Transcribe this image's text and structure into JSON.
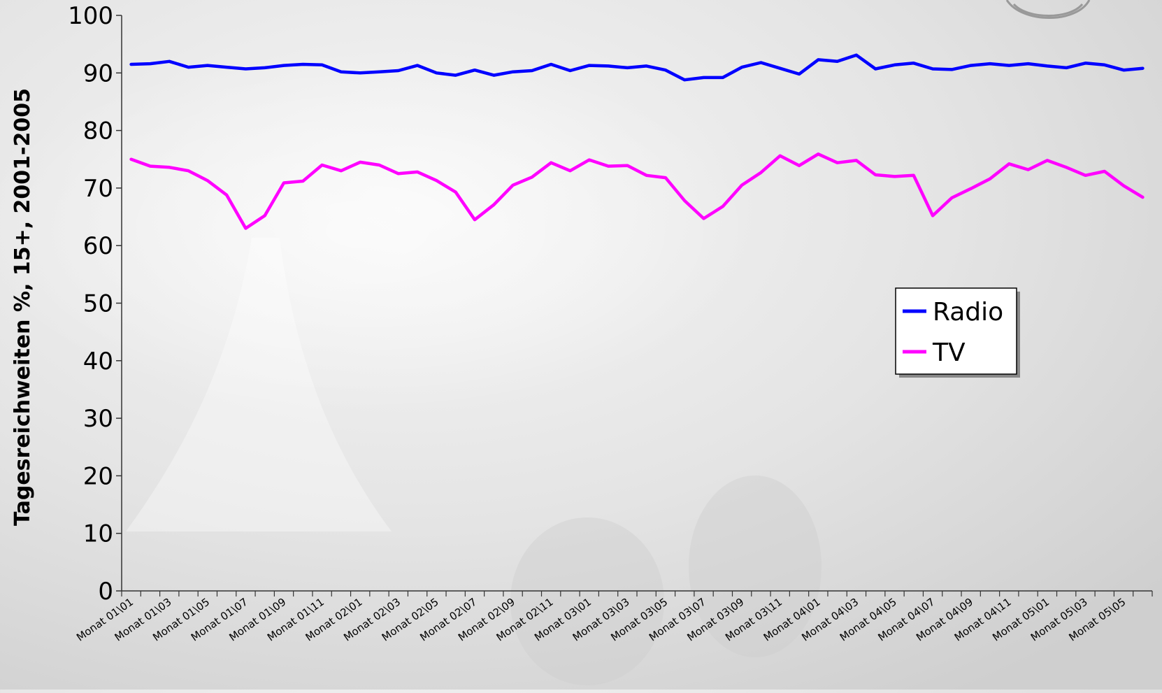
{
  "chart_data": {
    "type": "line",
    "ylabel": "Tagesreichweiten %, 15+, 2001-2005",
    "ylim": [
      0,
      100
    ],
    "yticks": [
      0,
      10,
      20,
      30,
      40,
      50,
      60,
      70,
      80,
      90,
      100
    ],
    "x_tick_labels": [
      "Monat 01\\01",
      "Monat 01\\03",
      "Monat 01\\05",
      "Monat 01\\07",
      "Monat 01\\09",
      "Monat 01\\11",
      "Monat 02\\01",
      "Monat 02\\03",
      "Monat 02\\05",
      "Monat 02\\07",
      "Monat 02\\09",
      "Monat 02\\11",
      "Monat 03\\01",
      "Monat 03\\03",
      "Monat 03\\05",
      "Monat 03\\07",
      "Monat 03\\09",
      "Monat 03\\11",
      "Monat 04\\01",
      "Monat 04\\03",
      "Monat 04\\05",
      "Monat 04\\07",
      "Monat 04\\09",
      "Monat 04\\11",
      "Monat 05\\01",
      "Monat 05\\03",
      "Monat 05\\05"
    ],
    "x_count": 54,
    "legend": {
      "position": "right",
      "entries": [
        "Radio",
        "TV"
      ]
    },
    "grid": false,
    "series": [
      {
        "name": "Radio",
        "color": "#0000ff",
        "values": [
          91.5,
          91.6,
          92.0,
          91.0,
          91.3,
          91.0,
          90.7,
          90.9,
          91.3,
          91.5,
          91.4,
          90.2,
          90.0,
          90.2,
          90.4,
          91.3,
          90.0,
          89.6,
          90.5,
          89.6,
          90.2,
          90.4,
          91.5,
          90.4,
          91.3,
          91.2,
          90.9,
          91.2,
          90.5,
          88.8,
          89.2,
          89.2,
          91.0,
          91.8,
          90.8,
          89.8,
          92.3,
          92.0,
          93.1,
          90.7,
          91.4,
          91.7,
          90.7,
          90.6,
          91.3,
          91.6,
          91.3,
          91.6,
          91.2,
          90.9,
          91.7,
          91.4,
          90.5,
          90.8
        ]
      },
      {
        "name": "TV",
        "color": "#ff00ff",
        "values": [
          75.0,
          73.8,
          73.6,
          73.0,
          71.3,
          68.8,
          63.0,
          65.2,
          70.9,
          71.2,
          74.0,
          73.0,
          74.5,
          74.0,
          72.5,
          72.8,
          71.3,
          69.3,
          64.5,
          67.1,
          70.5,
          71.9,
          74.4,
          73.0,
          74.9,
          73.8,
          73.9,
          72.2,
          71.8,
          67.8,
          64.7,
          66.8,
          70.5,
          72.7,
          75.6,
          73.9,
          75.9,
          74.4,
          74.8,
          72.3,
          72.0,
          72.2,
          65.2,
          68.3,
          69.9,
          71.6,
          74.2,
          73.2,
          74.8,
          73.6,
          72.2,
          72.9,
          70.4,
          68.4
        ]
      }
    ]
  }
}
